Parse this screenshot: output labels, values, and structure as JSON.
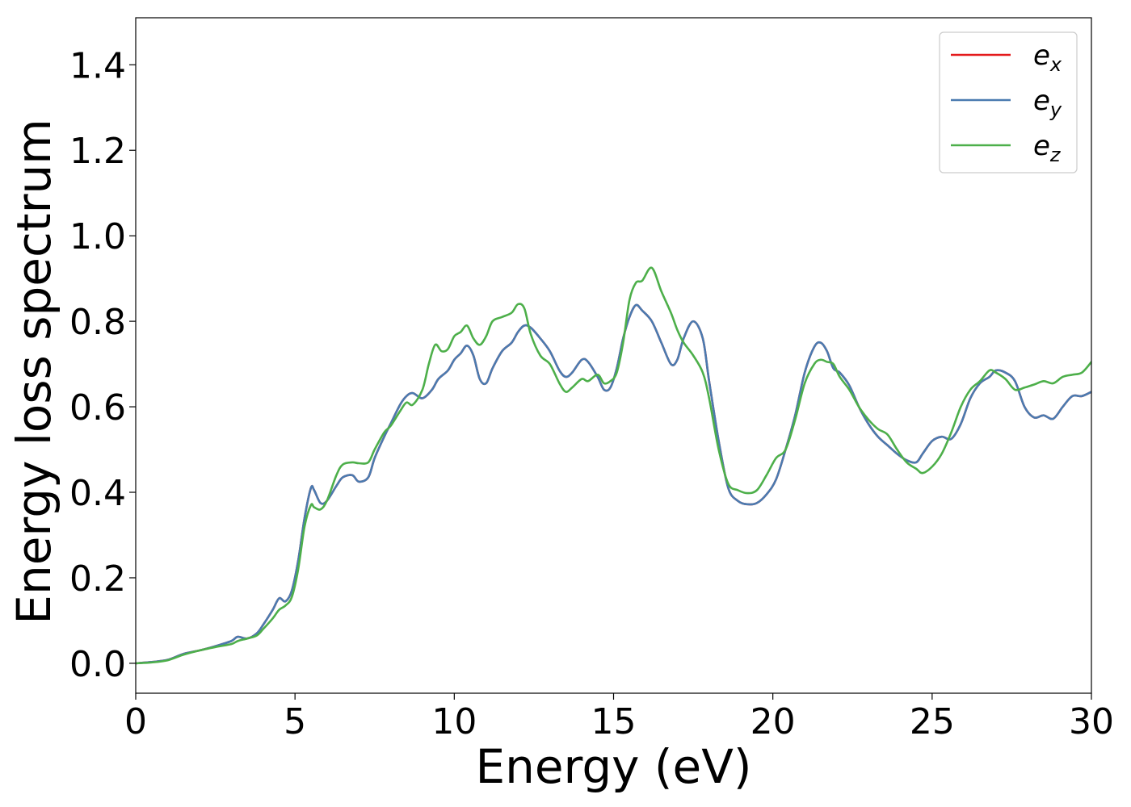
{
  "chart_data": {
    "type": "line",
    "title": "",
    "xlabel": "Energy (eV)",
    "ylabel": "Energy loss spectrum",
    "xlim": [
      0,
      30
    ],
    "ylim": [
      -0.07,
      1.51
    ],
    "xticks": [
      0,
      5,
      10,
      15,
      20,
      25,
      30
    ],
    "xtick_labels": [
      "0",
      "5",
      "10",
      "15",
      "20",
      "25",
      "30"
    ],
    "yticks": [
      0.0,
      0.2,
      0.4,
      0.6,
      0.8,
      1.0,
      1.2,
      1.4
    ],
    "ytick_labels": [
      "0.0",
      "0.2",
      "0.4",
      "0.6",
      "0.8",
      "1.0",
      "1.2",
      "1.4"
    ],
    "grid": false,
    "legend_position": "top-right",
    "series": [
      {
        "name": "e_x",
        "label_base": "e",
        "label_sub": "x",
        "color": "#e41a1c",
        "x": [
          0,
          0.5,
          1.0,
          1.5,
          2.0,
          2.5,
          3.0,
          3.2,
          3.5,
          3.8,
          4.0,
          4.3,
          4.5,
          4.7,
          4.9,
          5.1,
          5.3,
          5.5,
          5.6,
          5.8,
          6.0,
          6.3,
          6.5,
          6.8,
          7.0,
          7.3,
          7.5,
          7.8,
          8.0,
          8.3,
          8.5,
          8.7,
          9.0,
          9.3,
          9.5,
          9.8,
          10.0,
          10.2,
          10.4,
          10.6,
          10.8,
          11.0,
          11.2,
          11.5,
          11.8,
          12.0,
          12.2,
          12.4,
          12.7,
          13.0,
          13.3,
          13.5,
          13.7,
          14.0,
          14.2,
          14.5,
          14.7,
          14.9,
          15.1,
          15.3,
          15.5,
          15.7,
          15.9,
          16.2,
          16.5,
          16.8,
          17.0,
          17.2,
          17.5,
          17.8,
          18.0,
          18.3,
          18.6,
          18.9,
          19.2,
          19.5,
          19.8,
          20.1,
          20.4,
          20.7,
          21.0,
          21.3,
          21.5,
          21.7,
          21.9,
          22.1,
          22.4,
          22.7,
          23.0,
          23.3,
          23.6,
          23.9,
          24.2,
          24.5,
          24.7,
          25.0,
          25.3,
          25.6,
          25.9,
          26.2,
          26.5,
          26.8,
          27.0,
          27.3,
          27.6,
          27.9,
          28.2,
          28.5,
          28.8,
          29.1,
          29.4,
          29.7,
          30.0
        ],
        "y": [
          0.0,
          0.003,
          0.008,
          0.022,
          0.03,
          0.04,
          0.052,
          0.062,
          0.058,
          0.07,
          0.09,
          0.125,
          0.152,
          0.145,
          0.17,
          0.24,
          0.34,
          0.41,
          0.405,
          0.375,
          0.38,
          0.415,
          0.435,
          0.44,
          0.425,
          0.435,
          0.48,
          0.53,
          0.56,
          0.605,
          0.625,
          0.632,
          0.62,
          0.64,
          0.665,
          0.685,
          0.71,
          0.725,
          0.743,
          0.72,
          0.665,
          0.655,
          0.69,
          0.73,
          0.75,
          0.775,
          0.79,
          0.785,
          0.76,
          0.73,
          0.685,
          0.67,
          0.68,
          0.71,
          0.705,
          0.67,
          0.64,
          0.645,
          0.69,
          0.76,
          0.81,
          0.838,
          0.825,
          0.8,
          0.75,
          0.7,
          0.71,
          0.76,
          0.8,
          0.76,
          0.66,
          0.52,
          0.41,
          0.38,
          0.372,
          0.375,
          0.395,
          0.43,
          0.5,
          0.58,
          0.68,
          0.74,
          0.75,
          0.73,
          0.69,
          0.68,
          0.65,
          0.6,
          0.56,
          0.53,
          0.51,
          0.49,
          0.475,
          0.47,
          0.49,
          0.52,
          0.53,
          0.525,
          0.56,
          0.62,
          0.655,
          0.67,
          0.685,
          0.68,
          0.66,
          0.6,
          0.575,
          0.58,
          0.572,
          0.6,
          0.625,
          0.625,
          0.635
        ]
      },
      {
        "name": "e_y",
        "label_base": "e",
        "label_sub": "y",
        "color": "#4a7bb0",
        "x": [
          0,
          0.5,
          1.0,
          1.5,
          2.0,
          2.5,
          3.0,
          3.2,
          3.5,
          3.8,
          4.0,
          4.3,
          4.5,
          4.7,
          4.9,
          5.1,
          5.3,
          5.5,
          5.6,
          5.8,
          6.0,
          6.3,
          6.5,
          6.8,
          7.0,
          7.3,
          7.5,
          7.8,
          8.0,
          8.3,
          8.5,
          8.7,
          9.0,
          9.3,
          9.5,
          9.8,
          10.0,
          10.2,
          10.4,
          10.6,
          10.8,
          11.0,
          11.2,
          11.5,
          11.8,
          12.0,
          12.2,
          12.4,
          12.7,
          13.0,
          13.3,
          13.5,
          13.7,
          14.0,
          14.2,
          14.5,
          14.7,
          14.9,
          15.1,
          15.3,
          15.5,
          15.7,
          15.9,
          16.2,
          16.5,
          16.8,
          17.0,
          17.2,
          17.5,
          17.8,
          18.0,
          18.3,
          18.6,
          18.9,
          19.2,
          19.5,
          19.8,
          20.1,
          20.4,
          20.7,
          21.0,
          21.3,
          21.5,
          21.7,
          21.9,
          22.1,
          22.4,
          22.7,
          23.0,
          23.3,
          23.6,
          23.9,
          24.2,
          24.5,
          24.7,
          25.0,
          25.3,
          25.6,
          25.9,
          26.2,
          26.5,
          26.8,
          27.0,
          27.3,
          27.6,
          27.9,
          28.2,
          28.5,
          28.8,
          29.1,
          29.4,
          29.7,
          30.0
        ],
        "y": [
          0.0,
          0.003,
          0.008,
          0.022,
          0.03,
          0.04,
          0.052,
          0.062,
          0.058,
          0.07,
          0.09,
          0.125,
          0.152,
          0.145,
          0.17,
          0.24,
          0.34,
          0.41,
          0.405,
          0.375,
          0.38,
          0.415,
          0.435,
          0.44,
          0.425,
          0.435,
          0.48,
          0.53,
          0.56,
          0.605,
          0.625,
          0.632,
          0.62,
          0.64,
          0.665,
          0.685,
          0.71,
          0.725,
          0.743,
          0.72,
          0.665,
          0.655,
          0.69,
          0.73,
          0.75,
          0.775,
          0.79,
          0.785,
          0.76,
          0.73,
          0.685,
          0.67,
          0.68,
          0.71,
          0.705,
          0.67,
          0.64,
          0.645,
          0.69,
          0.76,
          0.81,
          0.838,
          0.825,
          0.8,
          0.75,
          0.7,
          0.71,
          0.76,
          0.8,
          0.76,
          0.66,
          0.52,
          0.41,
          0.38,
          0.372,
          0.375,
          0.395,
          0.43,
          0.5,
          0.58,
          0.68,
          0.74,
          0.75,
          0.73,
          0.69,
          0.68,
          0.65,
          0.6,
          0.56,
          0.53,
          0.51,
          0.49,
          0.475,
          0.47,
          0.49,
          0.52,
          0.53,
          0.525,
          0.56,
          0.62,
          0.655,
          0.67,
          0.685,
          0.68,
          0.66,
          0.6,
          0.575,
          0.58,
          0.572,
          0.6,
          0.625,
          0.625,
          0.635
        ]
      },
      {
        "name": "e_z",
        "label_base": "e",
        "label_sub": "z",
        "color": "#4daf4a",
        "x": [
          0,
          0.5,
          1.0,
          1.5,
          2.0,
          2.5,
          3.0,
          3.2,
          3.5,
          3.8,
          4.0,
          4.3,
          4.5,
          4.7,
          4.9,
          5.1,
          5.3,
          5.5,
          5.6,
          5.8,
          6.0,
          6.3,
          6.5,
          6.8,
          7.0,
          7.3,
          7.5,
          7.8,
          8.0,
          8.3,
          8.5,
          8.7,
          9.0,
          9.2,
          9.4,
          9.6,
          9.8,
          10.0,
          10.2,
          10.4,
          10.6,
          10.8,
          11.0,
          11.2,
          11.5,
          11.8,
          12.0,
          12.2,
          12.4,
          12.7,
          13.0,
          13.3,
          13.5,
          13.7,
          14.0,
          14.2,
          14.5,
          14.7,
          14.9,
          15.1,
          15.3,
          15.5,
          15.7,
          15.9,
          16.2,
          16.5,
          16.8,
          17.0,
          17.2,
          17.5,
          17.8,
          18.0,
          18.3,
          18.6,
          18.9,
          19.2,
          19.5,
          19.8,
          20.1,
          20.4,
          20.7,
          21.0,
          21.3,
          21.5,
          21.7,
          21.9,
          22.1,
          22.4,
          22.7,
          23.0,
          23.3,
          23.6,
          23.9,
          24.2,
          24.5,
          24.7,
          25.0,
          25.3,
          25.6,
          25.9,
          26.2,
          26.5,
          26.8,
          27.0,
          27.3,
          27.6,
          27.9,
          28.2,
          28.5,
          28.8,
          29.1,
          29.4,
          29.7,
          30.0
        ],
        "y": [
          0.0,
          0.002,
          0.007,
          0.02,
          0.03,
          0.038,
          0.045,
          0.052,
          0.058,
          0.065,
          0.08,
          0.105,
          0.125,
          0.135,
          0.155,
          0.22,
          0.32,
          0.37,
          0.365,
          0.36,
          0.38,
          0.44,
          0.465,
          0.47,
          0.468,
          0.47,
          0.5,
          0.54,
          0.555,
          0.59,
          0.61,
          0.605,
          0.64,
          0.7,
          0.745,
          0.73,
          0.735,
          0.765,
          0.775,
          0.79,
          0.76,
          0.745,
          0.765,
          0.8,
          0.81,
          0.82,
          0.84,
          0.83,
          0.77,
          0.72,
          0.7,
          0.655,
          0.635,
          0.645,
          0.665,
          0.66,
          0.675,
          0.655,
          0.66,
          0.68,
          0.75,
          0.85,
          0.89,
          0.895,
          0.925,
          0.87,
          0.82,
          0.78,
          0.75,
          0.72,
          0.68,
          0.62,
          0.5,
          0.42,
          0.405,
          0.398,
          0.405,
          0.44,
          0.48,
          0.5,
          0.57,
          0.655,
          0.7,
          0.71,
          0.705,
          0.7,
          0.67,
          0.64,
          0.6,
          0.57,
          0.548,
          0.535,
          0.5,
          0.47,
          0.455,
          0.445,
          0.46,
          0.49,
          0.54,
          0.6,
          0.64,
          0.66,
          0.685,
          0.68,
          0.665,
          0.64,
          0.645,
          0.652,
          0.66,
          0.655,
          0.67,
          0.675,
          0.68,
          0.705
        ]
      }
    ]
  }
}
